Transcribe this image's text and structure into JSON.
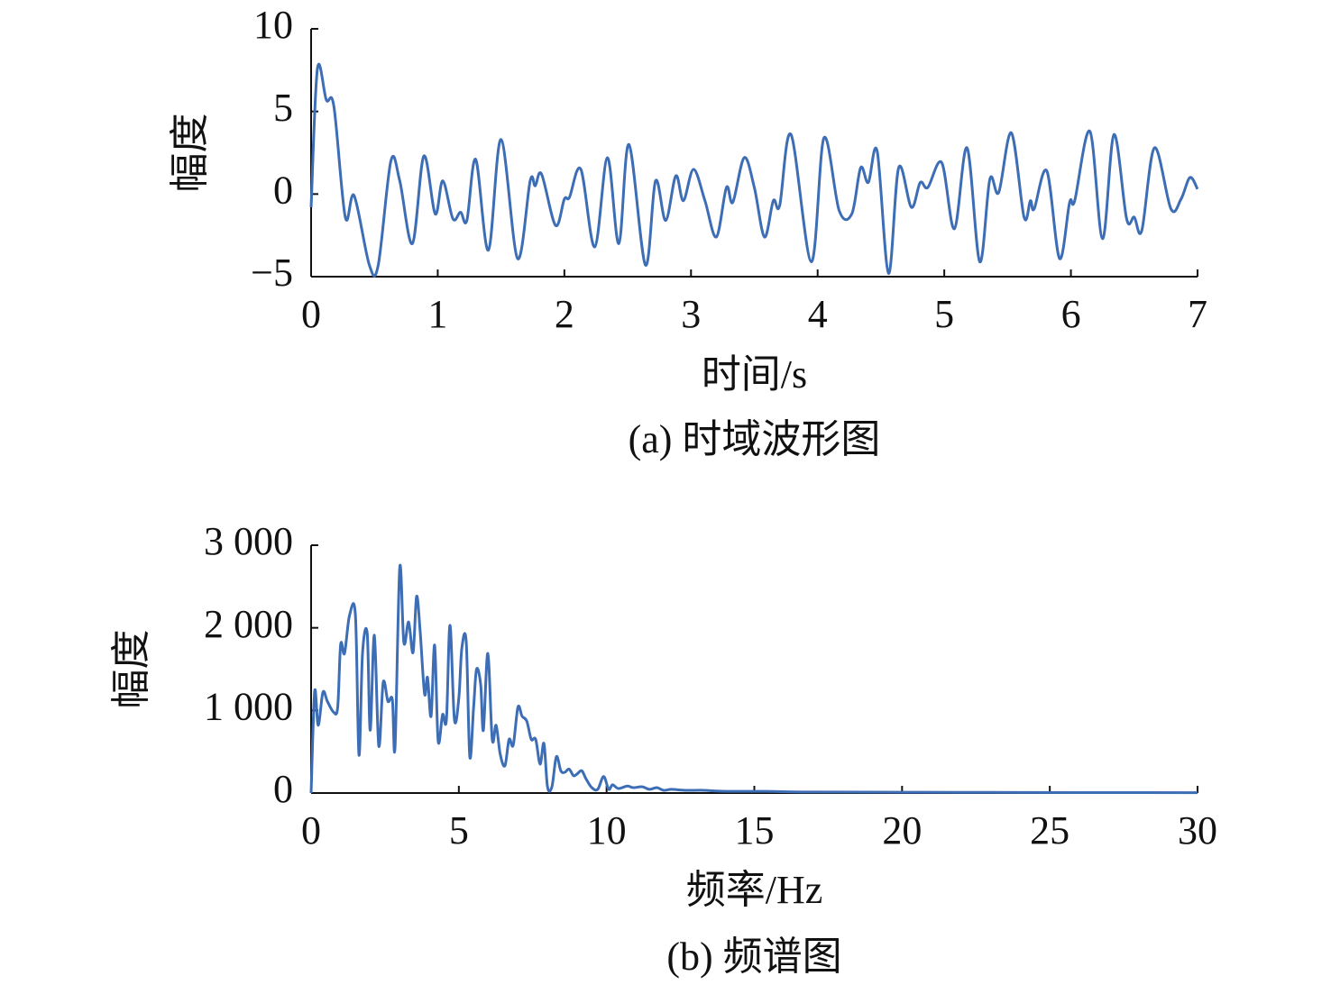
{
  "chart_data": [
    {
      "type": "line",
      "ylabel": "幅度",
      "xlabel": "时间/s",
      "caption": "(a) 时域波形图",
      "color": "#3d6db5",
      "xlim": [
        0,
        7
      ],
      "ylim": [
        -5,
        10
      ],
      "xticks": [
        0,
        1,
        2,
        3,
        4,
        5,
        6,
        7
      ],
      "yticks": [
        {
          "value": -5,
          "label": "−5"
        },
        0,
        5,
        10
      ],
      "x": [
        0,
        0.05,
        0.12,
        0.18,
        0.27,
        0.34,
        0.46,
        0.53,
        0.63,
        0.7,
        0.8,
        0.89,
        0.98,
        1.04,
        1.12,
        1.18,
        1.23,
        1.3,
        1.4,
        1.5,
        1.63,
        1.73,
        1.77,
        1.82,
        1.93,
        2.0,
        2.04,
        2.13,
        2.24,
        2.34,
        2.43,
        2.51,
        2.64,
        2.72,
        2.8,
        2.88,
        2.94,
        3.02,
        3.11,
        3.2,
        3.28,
        3.33,
        3.42,
        3.5,
        3.58,
        3.65,
        3.7,
        3.79,
        3.95,
        4.05,
        4.17,
        4.27,
        4.34,
        4.4,
        4.47,
        4.56,
        4.64,
        4.74,
        4.81,
        4.87,
        4.98,
        5.08,
        5.18,
        5.28,
        5.36,
        5.43,
        5.53,
        5.63,
        5.68,
        5.71,
        5.81,
        5.91,
        5.99,
        6.03,
        6.15,
        6.25,
        6.34,
        6.44,
        6.5,
        6.56,
        6.66,
        6.79,
        6.87,
        6.94,
        7.0
      ],
      "values": [
        -0.8,
        7.6,
        5.7,
        5.3,
        -1.4,
        -0.1,
        -4.3,
        -4.3,
        2.0,
        0.8,
        -3.0,
        2.3,
        -1.2,
        0.8,
        -1.5,
        -1.1,
        -1.6,
        2.1,
        -3.4,
        3.3,
        -3.9,
        0.8,
        0.5,
        1.2,
        -1.9,
        -0.3,
        -0.2,
        1.5,
        -3.2,
        2.2,
        -3.0,
        3.0,
        -4.3,
        0.8,
        -1.6,
        1.1,
        -0.4,
        1.5,
        -0.4,
        -2.6,
        0.4,
        -0.5,
        2.2,
        0.4,
        -2.6,
        -0.4,
        -0.7,
        3.6,
        -4.1,
        3.4,
        -1.0,
        -1.2,
        1.6,
        0.7,
        2.6,
        -4.8,
        1.6,
        -0.8,
        0.7,
        0.4,
        1.9,
        -2.1,
        2.8,
        -4.1,
        0.9,
        0.1,
        3.7,
        -1.4,
        -0.4,
        -0.9,
        1.4,
        -3.9,
        -0.5,
        -0.4,
        3.8,
        -2.7,
        3.6,
        -1.5,
        -1.4,
        -2.2,
        2.8,
        -0.9,
        -0.3,
        1.0,
        0.3
      ]
    },
    {
      "type": "line",
      "ylabel": "幅度",
      "xlabel": "频率/Hz",
      "caption": "(b) 频谱图",
      "color": "#3d6db5",
      "xlim": [
        0,
        30
      ],
      "ylim": [
        0,
        3000
      ],
      "xticks": [
        0,
        5,
        10,
        15,
        20,
        25,
        30
      ],
      "yticks": [
        0,
        {
          "value": 1000,
          "label": "1 000"
        },
        {
          "value": 2000,
          "label": "2 000"
        },
        {
          "value": 3000,
          "label": "3 000"
        }
      ],
      "x": [
        0,
        0.12,
        0.24,
        0.4,
        0.55,
        0.76,
        0.9,
        1.0,
        1.13,
        1.3,
        1.5,
        1.62,
        1.74,
        1.9,
        2.0,
        2.14,
        2.29,
        2.44,
        2.6,
        2.75,
        2.84,
        3.0,
        3.14,
        3.3,
        3.45,
        3.57,
        3.69,
        3.84,
        3.94,
        4.06,
        4.18,
        4.3,
        4.45,
        4.58,
        4.7,
        4.85,
        5.0,
        5.1,
        5.25,
        5.37,
        5.5,
        5.6,
        5.74,
        5.83,
        5.98,
        6.13,
        6.26,
        6.4,
        6.56,
        6.7,
        6.84,
        7.0,
        7.14,
        7.3,
        7.45,
        7.6,
        7.75,
        7.88,
        8.0,
        8.15,
        8.3,
        8.45,
        8.58,
        8.73,
        8.88,
        9.0,
        9.16,
        9.3,
        9.5,
        9.7,
        9.9,
        10.07,
        10.2,
        10.4,
        10.7,
        10.9,
        11.2,
        11.45,
        11.7,
        11.93,
        12.2,
        12.66,
        13.3,
        13.9,
        15.4,
        16.9,
        20,
        23,
        26,
        30
      ],
      "values": [
        0,
        1230,
        820,
        1220,
        1110,
        980,
        1040,
        1800,
        1690,
        2150,
        2150,
        460,
        1690,
        1930,
        760,
        1910,
        570,
        1340,
        1110,
        1130,
        550,
        2730,
        1820,
        2070,
        1700,
        2380,
        1960,
        1200,
        1400,
        930,
        1790,
        630,
        950,
        890,
        2030,
        890,
        1150,
        1750,
        1830,
        440,
        1040,
        1500,
        1310,
        760,
        1690,
        650,
        820,
        470,
        330,
        650,
        580,
        1040,
        930,
        870,
        650,
        650,
        350,
        600,
        76,
        76,
        440,
        270,
        250,
        290,
        210,
        230,
        270,
        175,
        65,
        45,
        200,
        45,
        100,
        55,
        85,
        65,
        76,
        45,
        65,
        33,
        45,
        33,
        33,
        22,
        20,
        12,
        10,
        8,
        6,
        4
      ]
    }
  ]
}
